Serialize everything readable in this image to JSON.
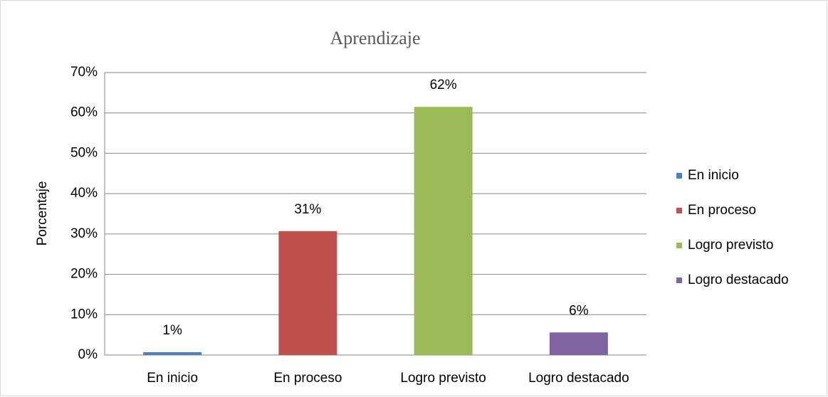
{
  "chart_data": {
    "type": "bar",
    "title": "Aprendizaje",
    "y_label": "Porcentaje",
    "categories": [
      "En inicio",
      "En proceso",
      "Logro previsto",
      "Logro destacado"
    ],
    "values": [
      0.7,
      30.7,
      61.5,
      5.6
    ],
    "value_labels": [
      "1%",
      "31%",
      "62%",
      "6%"
    ],
    "colors": [
      "#4f81bd",
      "#c0504d",
      "#9bbb59",
      "#8064a2"
    ],
    "ylim": [
      0,
      70
    ],
    "yticks": [
      {
        "value": 0,
        "label": "0%"
      },
      {
        "value": 10,
        "label": "10%"
      },
      {
        "value": 20,
        "label": "20%"
      },
      {
        "value": 30,
        "label": "30%"
      },
      {
        "value": 40,
        "label": "40%"
      },
      {
        "value": 50,
        "label": "50%"
      },
      {
        "value": 60,
        "label": "60%"
      },
      {
        "value": 70,
        "label": "70%"
      }
    ],
    "grid": true,
    "legend": "right"
  }
}
